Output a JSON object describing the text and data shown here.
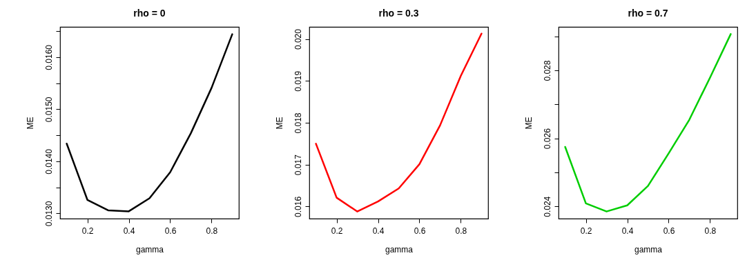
{
  "chart_data": [
    {
      "type": "line",
      "title": "rho =  0",
      "xlabel": "gamma",
      "ylabel": "ME",
      "x": [
        0.1,
        0.2,
        0.3,
        0.4,
        0.5,
        0.6,
        0.7,
        0.8,
        0.9
      ],
      "series": [
        {
          "color": "#000000",
          "values": [
            0.01434,
            0.01326,
            0.01306,
            0.01304,
            0.01329,
            0.01379,
            0.01454,
            0.01541,
            0.01644
          ]
        }
      ],
      "xlim": [
        0.068,
        0.932
      ],
      "xticks": [
        0.2,
        0.4,
        0.6,
        0.8
      ],
      "ylim": [
        0.0129,
        0.01658
      ],
      "yticks": [
        {
          "value": 0.013,
          "label": "0.0130"
        },
        {
          "value": 0.0135,
          "label": null
        },
        {
          "value": 0.014,
          "label": "0.0140"
        },
        {
          "value": 0.0145,
          "label": null
        },
        {
          "value": 0.015,
          "label": "0.0150"
        },
        {
          "value": 0.0155,
          "label": null
        },
        {
          "value": 0.016,
          "label": "0.0160"
        },
        {
          "value": 0.0165,
          "label": null
        }
      ],
      "grid": false,
      "marker": "none",
      "line_style": "solid"
    },
    {
      "type": "line",
      "title": "rho =  0.3",
      "xlabel": "gamma",
      "ylabel": "ME",
      "x": [
        0.1,
        0.2,
        0.3,
        0.4,
        0.5,
        0.6,
        0.7,
        0.8,
        0.9
      ],
      "series": [
        {
          "color": "#ff0000",
          "values": [
            0.0175,
            0.01621,
            0.01588,
            0.01612,
            0.01643,
            0.01701,
            0.01794,
            0.01912,
            0.02013
          ]
        }
      ],
      "xlim": [
        0.068,
        0.932
      ],
      "xticks": [
        0.2,
        0.4,
        0.6,
        0.8
      ],
      "ylim": [
        0.01571,
        0.02029
      ],
      "yticks": [
        {
          "value": 0.016,
          "label": "0.016"
        },
        {
          "value": 0.017,
          "label": "0.017"
        },
        {
          "value": 0.018,
          "label": "0.018"
        },
        {
          "value": 0.019,
          "label": "0.019"
        },
        {
          "value": 0.02,
          "label": "0.020"
        }
      ],
      "grid": false,
      "marker": "none",
      "line_style": "solid"
    },
    {
      "type": "line",
      "title": "rho =  0.7",
      "xlabel": "gamma",
      "ylabel": "ME",
      "x": [
        0.1,
        0.2,
        0.3,
        0.4,
        0.5,
        0.6,
        0.7,
        0.8,
        0.9
      ],
      "series": [
        {
          "color": "#00cd00",
          "values": [
            0.02575,
            0.02409,
            0.02385,
            0.02403,
            0.0246,
            0.02556,
            0.02655,
            0.02779,
            0.02907
          ]
        }
      ],
      "xlim": [
        0.068,
        0.932
      ],
      "xticks": [
        0.2,
        0.4,
        0.6,
        0.8
      ],
      "ylim": [
        0.02364,
        0.02928
      ],
      "yticks": [
        {
          "value": 0.024,
          "label": "0.024"
        },
        {
          "value": 0.025,
          "label": null
        },
        {
          "value": 0.026,
          "label": "0.026"
        },
        {
          "value": 0.027,
          "label": null
        },
        {
          "value": 0.028,
          "label": "0.028"
        },
        {
          "value": 0.029,
          "label": null
        }
      ],
      "grid": false,
      "marker": "none",
      "line_style": "solid"
    }
  ]
}
